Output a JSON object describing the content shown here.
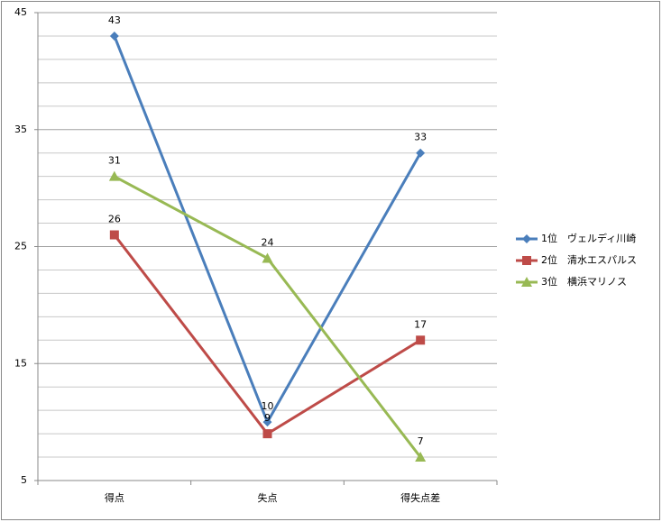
{
  "chart_data": {
    "type": "line",
    "categories": [
      "得点",
      "失点",
      "得失点差"
    ],
    "series": [
      {
        "name": "1位　ヴェルディ川崎",
        "color": "#4a7ebb",
        "marker": "diamond",
        "values": [
          43,
          10,
          33
        ]
      },
      {
        "name": "2位　清水エスパルス",
        "color": "#be4b48",
        "marker": "square",
        "values": [
          26,
          9,
          17
        ]
      },
      {
        "name": "3位　横浜マリノス",
        "color": "#98b954",
        "marker": "triangle",
        "values": [
          31,
          24,
          7
        ]
      }
    ],
    "ylim": [
      5,
      45
    ],
    "yticks": [
      5,
      15,
      25,
      35,
      45
    ],
    "minor_grid": [
      7,
      9,
      11,
      13,
      17,
      19,
      21,
      23,
      27,
      29,
      31,
      33,
      37,
      39,
      41,
      43
    ],
    "grid": true,
    "legend": "right",
    "data_labels": true
  }
}
